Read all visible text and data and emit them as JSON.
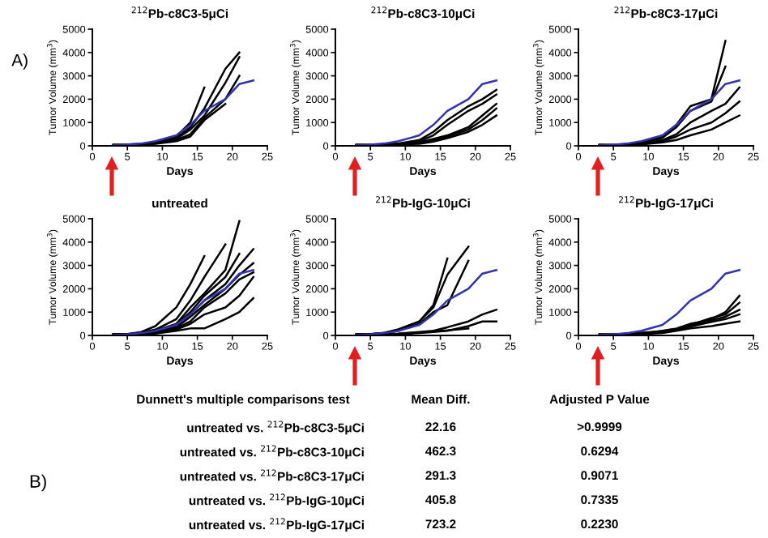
{
  "chart_data": [
    {
      "type": "line",
      "title": "$^{212}$Pb-c8C3-5μCi",
      "xlabel": "Days",
      "ylabel": "Tumor Volume (mm$^{3}$)",
      "annotations": [
        "A)"
      ],
      "xlim": [
        0,
        25
      ],
      "xticks": [
        0,
        5,
        10,
        15,
        20,
        25
      ],
      "ylim": [
        0,
        5000
      ],
      "yticks": [
        0,
        1000,
        2000,
        3000,
        4000,
        5000
      ],
      "series": [
        {
          "color": "#000000",
          "x": [
            3,
            5,
            7,
            9,
            12,
            14,
            16
          ],
          "values": [
            10,
            40,
            80,
            150,
            400,
            1000,
            2500
          ]
        },
        {
          "color": "#000000",
          "x": [
            3,
            5,
            7,
            9,
            12,
            14,
            16,
            19,
            21
          ],
          "values": [
            50,
            60,
            90,
            160,
            350,
            800,
            1600,
            3300,
            4000
          ]
        },
        {
          "color": "#000000",
          "x": [
            3,
            5,
            7,
            9,
            12,
            14,
            16,
            19,
            21
          ],
          "values": [
            30,
            40,
            70,
            120,
            300,
            700,
            1300,
            2700,
            3800
          ]
        },
        {
          "color": "#000000",
          "x": [
            3,
            5,
            7,
            9,
            12,
            14,
            16,
            19,
            21
          ],
          "values": [
            20,
            30,
            60,
            100,
            250,
            500,
            1200,
            2000,
            3000
          ]
        },
        {
          "color": "#000000",
          "x": [
            3,
            5,
            7,
            9,
            12,
            14,
            16,
            19
          ],
          "values": [
            40,
            30,
            50,
            90,
            200,
            400,
            1100,
            1800
          ]
        },
        {
          "color": "#3333aa",
          "x": [
            3,
            5,
            7,
            9,
            12,
            14,
            16,
            19,
            21,
            23
          ],
          "values": [
            20,
            50,
            100,
            200,
            450,
            900,
            1500,
            2000,
            2650,
            2800
          ]
        }
      ]
    },
    {
      "type": "line",
      "title": "$^{212}$Pb-c8C3-10μCi",
      "xlabel": "Days",
      "ylabel": "Tumor Volume (mm$^{3}$)",
      "xlim": [
        0,
        25
      ],
      "xticks": [
        0,
        5,
        10,
        15,
        20,
        25
      ],
      "ylim": [
        0,
        5000
      ],
      "yticks": [
        0,
        1000,
        2000,
        3000,
        4000,
        5000
      ],
      "series": [
        {
          "color": "#000000",
          "x": [
            3,
            5,
            7,
            9,
            12,
            14,
            16,
            19,
            21,
            23
          ],
          "values": [
            50,
            40,
            60,
            100,
            250,
            600,
            1100,
            1700,
            2000,
            2400
          ]
        },
        {
          "color": "#000000",
          "x": [
            3,
            5,
            7,
            9,
            12,
            14,
            16,
            19,
            21,
            23
          ],
          "values": [
            40,
            40,
            50,
            90,
            200,
            450,
            900,
            1500,
            1800,
            2200
          ]
        },
        {
          "color": "#000000",
          "x": [
            3,
            5,
            7,
            9,
            12,
            14,
            16,
            19,
            21,
            23
          ],
          "values": [
            30,
            30,
            40,
            80,
            150,
            300,
            450,
            800,
            1300,
            1800
          ]
        },
        {
          "color": "#000000",
          "x": [
            3,
            5,
            7,
            9,
            12,
            14,
            16,
            19,
            21,
            23
          ],
          "values": [
            20,
            20,
            30,
            70,
            120,
            250,
            400,
            700,
            1100,
            1600
          ]
        },
        {
          "color": "#000000",
          "x": [
            3,
            5,
            7,
            9,
            12,
            14,
            16,
            19,
            21,
            23
          ],
          "values": [
            10,
            10,
            20,
            50,
            90,
            180,
            330,
            600,
            900,
            1300
          ]
        },
        {
          "color": "#3333aa",
          "x": [
            3,
            5,
            7,
            9,
            12,
            14,
            16,
            19,
            21,
            23
          ],
          "values": [
            20,
            50,
            100,
            200,
            450,
            900,
            1500,
            2000,
            2650,
            2800
          ]
        }
      ]
    },
    {
      "type": "line",
      "title": "$^{212}$Pb-c8C3-17μCi",
      "xlabel": "Days",
      "ylabel": "Tumor Volume (mm$^{3}$)",
      "xlim": [
        0,
        25
      ],
      "xticks": [
        0,
        5,
        10,
        15,
        20,
        25
      ],
      "ylim": [
        0,
        5000
      ],
      "yticks": [
        0,
        1000,
        2000,
        3000,
        4000,
        5000
      ],
      "series": [
        {
          "color": "#000000",
          "x": [
            3,
            5,
            7,
            9,
            12,
            14,
            16,
            19,
            21
          ],
          "values": [
            10,
            40,
            80,
            150,
            400,
            900,
            1700,
            2000,
            4500
          ]
        },
        {
          "color": "#000000",
          "x": [
            3,
            5,
            7,
            9,
            12,
            14,
            16,
            19,
            21
          ],
          "values": [
            50,
            40,
            70,
            120,
            350,
            800,
            1500,
            1900,
            3400
          ]
        },
        {
          "color": "#000000",
          "x": [
            3,
            5,
            7,
            9,
            12,
            14,
            16,
            19,
            21,
            23
          ],
          "values": [
            30,
            30,
            60,
            100,
            250,
            500,
            1000,
            1500,
            1800,
            2500
          ]
        },
        {
          "color": "#000000",
          "x": [
            3,
            5,
            7,
            9,
            12,
            14,
            16,
            19,
            21,
            23
          ],
          "values": [
            20,
            30,
            50,
            80,
            200,
            400,
            700,
            1000,
            1400,
            1900
          ]
        },
        {
          "color": "#000000",
          "x": [
            3,
            5,
            7,
            9,
            12,
            14,
            16,
            19,
            21,
            23
          ],
          "values": [
            40,
            30,
            40,
            60,
            150,
            250,
            450,
            700,
            1000,
            1300
          ]
        },
        {
          "color": "#3333aa",
          "x": [
            3,
            5,
            7,
            9,
            12,
            14,
            16,
            19,
            21,
            23
          ],
          "values": [
            20,
            50,
            100,
            200,
            450,
            900,
            1500,
            2000,
            2650,
            2800
          ]
        }
      ]
    },
    {
      "type": "line",
      "title": "untreated",
      "xlabel": "Days",
      "ylabel": "Tumor Volume (mm$^{3}$)",
      "xlim": [
        0,
        25
      ],
      "xticks": [
        0,
        5,
        10,
        15,
        20,
        25
      ],
      "ylim": [
        0,
        5000
      ],
      "yticks": [
        0,
        1000,
        2000,
        3000,
        4000,
        5000
      ],
      "series": [
        {
          "color": "#000000",
          "x": [
            3,
            5,
            7,
            9,
            12,
            14,
            16
          ],
          "values": [
            10,
            60,
            150,
            400,
            1200,
            2200,
            3400
          ]
        },
        {
          "color": "#000000",
          "x": [
            3,
            5,
            7,
            9,
            12,
            14,
            16,
            19
          ],
          "values": [
            50,
            50,
            120,
            250,
            700,
            1500,
            2500,
            3900
          ]
        },
        {
          "color": "#000000",
          "x": [
            3,
            5,
            7,
            9,
            12,
            14,
            16,
            19,
            21
          ],
          "values": [
            30,
            50,
            100,
            200,
            500,
            1200,
            1800,
            2800,
            4900
          ]
        },
        {
          "color": "#000000",
          "x": [
            3,
            5,
            7,
            9,
            12,
            14,
            16,
            19,
            21
          ],
          "values": [
            20,
            40,
            100,
            200,
            450,
            1000,
            1700,
            2500,
            3500
          ]
        },
        {
          "color": "#000000",
          "x": [
            3,
            5,
            7,
            9,
            12,
            14,
            16,
            19,
            21,
            23
          ],
          "values": [
            40,
            40,
            80,
            150,
            400,
            900,
            1500,
            2200,
            3000,
            3700
          ]
        },
        {
          "color": "#000000",
          "x": [
            3,
            5,
            7,
            9,
            12,
            14,
            16,
            19,
            21,
            23
          ],
          "values": [
            60,
            40,
            80,
            150,
            350,
            800,
            1300,
            2000,
            2600,
            3100
          ]
        },
        {
          "color": "#000000",
          "x": [
            3,
            5,
            7,
            9,
            12,
            14,
            16,
            19,
            21,
            23
          ],
          "values": [
            20,
            30,
            70,
            120,
            300,
            600,
            1200,
            1800,
            2400,
            2700
          ]
        },
        {
          "color": "#000000",
          "x": [
            3,
            5,
            7,
            9,
            12,
            14,
            16,
            19,
            21,
            23
          ],
          "values": [
            40,
            30,
            60,
            100,
            250,
            500,
            900,
            1200,
            1700,
            2500
          ]
        },
        {
          "color": "#000000",
          "x": [
            3,
            5,
            7,
            9,
            12,
            14,
            16,
            19,
            21,
            23
          ],
          "values": [
            30,
            30,
            50,
            80,
            200,
            300,
            300,
            700,
            1000,
            1600
          ]
        },
        {
          "color": "#3333aa",
          "x": [
            3,
            5,
            7,
            9,
            12,
            14,
            16,
            19,
            21,
            23
          ],
          "values": [
            20,
            50,
            100,
            200,
            450,
            900,
            1500,
            2000,
            2650,
            2800
          ]
        }
      ]
    },
    {
      "type": "line",
      "title": "$^{212}$Pb-IgG-10μCi",
      "xlabel": "Days",
      "ylabel": "Tumor Volume (mm$^{3}$)",
      "xlim": [
        0,
        25
      ],
      "xticks": [
        0,
        5,
        10,
        15,
        20,
        25
      ],
      "ylim": [
        0,
        5000
      ],
      "yticks": [
        0,
        1000,
        2000,
        3000,
        4000,
        5000
      ],
      "series": [
        {
          "color": "#000000",
          "x": [
            3,
            5,
            7,
            9,
            12,
            14,
            16
          ],
          "values": [
            10,
            50,
            100,
            250,
            600,
            1300,
            3300
          ]
        },
        {
          "color": "#000000",
          "x": [
            3,
            5,
            7,
            9,
            12,
            14,
            16,
            19
          ],
          "values": [
            50,
            60,
            110,
            260,
            600,
            1200,
            2600,
            3800
          ]
        },
        {
          "color": "#000000",
          "x": [
            3,
            5,
            7,
            9,
            12,
            14,
            16,
            19
          ],
          "values": [
            30,
            50,
            100,
            200,
            500,
            1000,
            1300,
            3200
          ]
        },
        {
          "color": "#000000",
          "x": [
            3,
            5,
            7,
            9,
            12,
            14,
            16,
            19,
            21,
            23
          ],
          "values": [
            20,
            30,
            50,
            80,
            150,
            200,
            350,
            600,
            900,
            1100
          ]
        },
        {
          "color": "#000000",
          "x": [
            3,
            5,
            7,
            9,
            12,
            14,
            16,
            19,
            21,
            23
          ],
          "values": [
            40,
            30,
            40,
            60,
            100,
            150,
            200,
            400,
            600,
            600
          ]
        },
        {
          "color": "#000000",
          "x": [
            3,
            5,
            7,
            9,
            12,
            14,
            16,
            19
          ],
          "values": [
            60,
            40,
            50,
            70,
            120,
            170,
            220,
            300
          ]
        },
        {
          "color": "#3333aa",
          "x": [
            3,
            5,
            7,
            9,
            12,
            14,
            16,
            19,
            21,
            23
          ],
          "values": [
            20,
            50,
            100,
            200,
            450,
            900,
            1500,
            2000,
            2650,
            2800
          ]
        }
      ]
    },
    {
      "type": "line",
      "title": "$^{212}$Pb-IgG-17μCi",
      "xlabel": "Days",
      "ylabel": "Tumor Volume (mm$^{3}$)",
      "xlim": [
        0,
        25
      ],
      "xticks": [
        0,
        5,
        10,
        15,
        20,
        25
      ],
      "ylim": [
        0,
        5000
      ],
      "yticks": [
        0,
        1000,
        2000,
        3000,
        4000,
        5000
      ],
      "series": [
        {
          "color": "#000000",
          "x": [
            3,
            5,
            7,
            9,
            12,
            14,
            16,
            19,
            21,
            23
          ],
          "values": [
            10,
            40,
            60,
            100,
            150,
            250,
            400,
            700,
            1000,
            1700
          ]
        },
        {
          "color": "#000000",
          "x": [
            3,
            5,
            7,
            9,
            12,
            14,
            16,
            19,
            21,
            23
          ],
          "values": [
            50,
            50,
            70,
            110,
            180,
            280,
            450,
            750,
            900,
            1400
          ]
        },
        {
          "color": "#000000",
          "x": [
            3,
            5,
            7,
            9,
            12,
            14,
            16,
            19,
            21,
            23
          ],
          "values": [
            30,
            30,
            50,
            80,
            200,
            300,
            500,
            650,
            800,
            1100
          ]
        },
        {
          "color": "#000000",
          "x": [
            3,
            5,
            7,
            9,
            12,
            14,
            16,
            19,
            21,
            23
          ],
          "values": [
            20,
            20,
            40,
            70,
            130,
            230,
            380,
            580,
            700,
            900
          ]
        },
        {
          "color": "#000000",
          "x": [
            3,
            5,
            7,
            9,
            12,
            14,
            16,
            19,
            21,
            23
          ],
          "values": [
            40,
            30,
            40,
            60,
            100,
            200,
            300,
            400,
            500,
            600
          ]
        },
        {
          "color": "#3333aa",
          "x": [
            3,
            5,
            7,
            9,
            12,
            14,
            16,
            19,
            21,
            23
          ],
          "values": [
            20,
            50,
            100,
            200,
            450,
            900,
            1500,
            2000,
            2650,
            2800
          ]
        }
      ]
    },
    {
      "type": "other",
      "annotations": [
        "B)",
        "Dunnett's multiple comparisons test",
        "Mean Diff.",
        "Adjusted P Value",
        "untreated vs. $^{212}$Pb-c8C3-5μCi",
        "22.16",
        ">0.9999",
        "untreated vs. $^{212}$Pb-c8C3-10μCi",
        "462.3",
        "0.6294",
        "untreated vs. $^{212}$Pb-c8C3-17μCi",
        "291.3",
        "0.9071",
        "untreated vs. $^{212}$Pb-IgG-10μCi",
        "405.8",
        "0.7335",
        "untreated vs. $^{212}$Pb-IgG-17μCi",
        "723.2",
        "0.2230"
      ]
    }
  ]
}
